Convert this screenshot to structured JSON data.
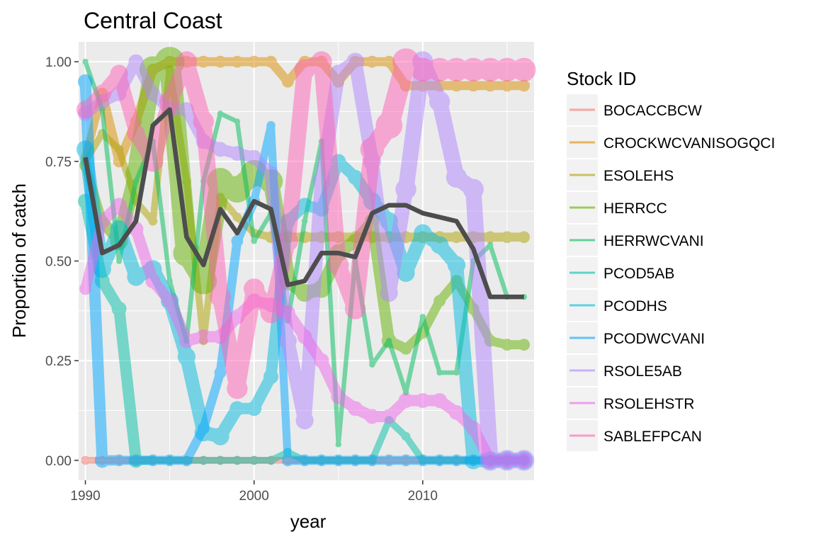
{
  "chart_data": {
    "type": "line",
    "title": "Central Coast",
    "xlabel": "year",
    "ylabel": "Proportion of catch",
    "xlim": [
      1989.6,
      2016.6
    ],
    "ylim": [
      -0.05,
      1.05
    ],
    "x_ticks": [
      1990,
      2000,
      2010
    ],
    "x_tick_labels": [
      "1990",
      "2000",
      "2010"
    ],
    "y_ticks": [
      0,
      0.25,
      0.5,
      0.75,
      1.0
    ],
    "y_tick_labels": [
      "0.00",
      "0.25",
      "0.50",
      "0.75",
      "1.00"
    ],
    "grid": true,
    "legend_title": "Stock ID",
    "legend_position": "right",
    "series": [
      {
        "name": "BOCACCBCW",
        "color": "#F8766D",
        "x": [
          1990,
          1991,
          1992,
          1993,
          1994,
          1995,
          1996,
          1997,
          1998,
          1999,
          2000,
          2001,
          2002,
          2003,
          2004,
          2005,
          2006,
          2007,
          2008,
          2009,
          2010,
          2011,
          2012,
          2013,
          2014,
          2015,
          2016
        ],
        "y": [
          0,
          0,
          0,
          0,
          0,
          0,
          0,
          0,
          0,
          0,
          0,
          0,
          0,
          0,
          0,
          0,
          0,
          0,
          0,
          0,
          0,
          0,
          0,
          0,
          0,
          0,
          0
        ],
        "w": [
          3,
          3,
          3,
          3,
          3,
          3,
          3,
          3,
          3,
          3,
          3,
          3,
          3,
          3,
          3,
          3,
          3,
          3,
          3,
          3,
          3,
          3,
          3,
          3,
          3,
          3,
          3
        ]
      },
      {
        "name": "CROCKWCVANISOGQCI",
        "color": "#DB8E00",
        "x": [
          1990,
          1991,
          1992,
          1993,
          1994,
          1995,
          1996,
          1997,
          1998,
          1999,
          2000,
          2001,
          2002,
          2003,
          2004,
          2005,
          2006,
          2007,
          2008,
          2009,
          2010,
          2011,
          2012,
          2013,
          2014,
          2015,
          2016
        ],
        "y": [
          0.76,
          0.92,
          0.75,
          0.85,
          0.98,
          1.0,
          1.0,
          1.0,
          1.0,
          1.0,
          1.0,
          1.0,
          0.95,
          1.0,
          1.0,
          0.95,
          1.0,
          1.0,
          1.0,
          0.94,
          0.94,
          0.94,
          0.94,
          0.94,
          0.94,
          0.94,
          0.94
        ],
        "w": [
          3,
          4,
          4,
          4,
          4,
          4,
          4,
          4,
          4,
          4,
          4,
          4,
          4,
          4,
          4,
          4,
          4,
          4,
          4,
          4,
          4,
          4,
          4,
          4,
          4,
          4,
          4
        ]
      },
      {
        "name": "ESOLEHS",
        "color": "#AEA200",
        "x": [
          1990,
          1991,
          1992,
          1993,
          1994,
          1995,
          1996,
          1997,
          1998,
          1999,
          2000,
          2001,
          2002,
          2003,
          2004,
          2005,
          2006,
          2007,
          2008,
          2009,
          2010,
          2011,
          2012,
          2013,
          2014,
          2015,
          2016
        ],
        "y": [
          0.75,
          0.82,
          0.78,
          0.65,
          0.6,
          0.98,
          0.7,
          0.3,
          0.66,
          0.61,
          0.57,
          0.56,
          0.56,
          0.56,
          0.56,
          0.56,
          0.56,
          0.56,
          0.56,
          0.56,
          0.56,
          0.56,
          0.56,
          0.56,
          0.56,
          0.56,
          0.56
        ],
        "w": [
          3,
          3,
          3,
          3,
          3,
          3,
          3,
          3,
          3,
          3,
          3,
          4,
          4,
          4,
          4,
          4,
          4,
          4,
          4,
          4,
          4,
          4,
          4,
          4,
          4,
          4,
          4
        ]
      },
      {
        "name": "HERRCC",
        "color": "#64B200",
        "x": [
          1990,
          1991,
          1992,
          1993,
          1994,
          1995,
          1996,
          1997,
          1998,
          1999,
          2000,
          2001,
          2002,
          2003,
          2004,
          2005,
          2006,
          2007,
          2008,
          2009,
          2010,
          2011,
          2012,
          2013,
          2014,
          2015,
          2016
        ],
        "y": [
          0.74,
          0.6,
          0.55,
          0.72,
          0.98,
          1.0,
          0.52,
          0.45,
          0.7,
          0.68,
          0.72,
          0.7,
          0.45,
          0.42,
          0.43,
          0.52,
          0.55,
          0.6,
          0.3,
          0.28,
          0.32,
          0.4,
          0.45,
          0.38,
          0.3,
          0.29,
          0.29
        ],
        "w": [
          4,
          4,
          6,
          7,
          9,
          10,
          9,
          9,
          9,
          9,
          9,
          8,
          6,
          6,
          6,
          6,
          5,
          5,
          5,
          4,
          4,
          4,
          4,
          4,
          4,
          4,
          4
        ]
      },
      {
        "name": "HERRWCVANI",
        "color": "#00BD5C",
        "x": [
          1990,
          1991,
          1992,
          1993,
          1994,
          1995,
          1996,
          1997,
          1998,
          1999,
          2000,
          2001,
          2002,
          2003,
          2004,
          2005,
          2006,
          2007,
          2008,
          2009,
          2010,
          2011,
          2012,
          2013,
          2014,
          2015,
          2016
        ],
        "y": [
          1.0,
          0.88,
          0.5,
          0.7,
          0.8,
          0.45,
          0.3,
          0.7,
          0.87,
          0.85,
          0.55,
          0.62,
          0.35,
          0.6,
          0.8,
          0.04,
          0.5,
          0.24,
          0.3,
          0.17,
          0.36,
          0.22,
          0.22,
          0.5,
          0.54,
          0.41,
          0.41
        ],
        "w": [
          2,
          2,
          2,
          2,
          2,
          2,
          2,
          2,
          2,
          2,
          2,
          2,
          2,
          2,
          2,
          2,
          2,
          2,
          2,
          2,
          2,
          2,
          2,
          2,
          2,
          2,
          2
        ]
      },
      {
        "name": "PCOD5AB",
        "color": "#00C1A7",
        "x": [
          1990,
          1991,
          1992,
          1993,
          1994,
          1995,
          1996,
          1997,
          1998,
          1999,
          2000,
          2001,
          2002,
          2003,
          2004,
          2005,
          2006,
          2007,
          2008,
          2009,
          2010,
          2011,
          2012,
          2013,
          2014,
          2015,
          2016
        ],
        "y": [
          0.65,
          0.45,
          0.38,
          0.0,
          0.0,
          0.0,
          0.0,
          0.0,
          0.0,
          0.0,
          0.0,
          0.0,
          0.02,
          0.0,
          0.0,
          0.0,
          0.0,
          0.0,
          0.1,
          0.06,
          0.0,
          0.0,
          0.0,
          0.0,
          0.0,
          0.0,
          0.0
        ],
        "w": [
          5,
          5,
          5,
          5,
          3,
          3,
          3,
          3,
          3,
          3,
          3,
          3,
          3,
          3,
          3,
          3,
          3,
          3,
          3,
          3,
          3,
          3,
          3,
          3,
          3,
          3,
          3
        ]
      },
      {
        "name": "PCODHS",
        "color": "#00BADE",
        "x": [
          1990,
          1991,
          1992,
          1993,
          1994,
          1995,
          1996,
          1997,
          1998,
          1999,
          2000,
          2001,
          2002,
          2003,
          2004,
          2005,
          2006,
          2007,
          2008,
          2009,
          2010,
          2011,
          2012,
          2013,
          2014,
          2015,
          2016
        ],
        "y": [
          0.78,
          0.48,
          0.58,
          0.46,
          0.48,
          0.4,
          0.26,
          0.07,
          0.06,
          0.13,
          0.13,
          0.21,
          0.6,
          0.64,
          0.63,
          0.75,
          0.71,
          0.65,
          0.6,
          0.47,
          0.57,
          0.54,
          0.49,
          0.0,
          0.0,
          0.0,
          0.0
        ],
        "w": [
          6,
          6,
          6,
          6,
          6,
          6,
          6,
          6,
          6,
          5,
          5,
          5,
          5,
          5,
          5,
          5,
          5,
          6,
          6,
          6,
          6,
          6,
          6,
          6,
          6,
          6,
          6
        ]
      },
      {
        "name": "PCODWCVANI",
        "color": "#00A6FF",
        "x": [
          1990,
          1991,
          1992,
          1993,
          1994,
          1995,
          1996,
          1997,
          1998,
          1999,
          2000,
          2001,
          2002,
          2003,
          2004,
          2005,
          2006,
          2007,
          2008,
          2009,
          2010,
          2011,
          2012,
          2013,
          2014,
          2015,
          2016
        ],
        "y": [
          0.95,
          0.0,
          0.0,
          0.0,
          0.0,
          0.0,
          0.0,
          0.08,
          0.22,
          0.55,
          0.65,
          0.84,
          0.0,
          0.0,
          0.0,
          0.0,
          0.0,
          0.0,
          0.0,
          0.0,
          0.0,
          0.0,
          0.0,
          0.0,
          0.0,
          0.0,
          0.0
        ],
        "w": [
          5,
          5,
          4,
          4,
          4,
          4,
          4,
          4,
          4,
          4,
          4,
          3,
          4,
          4,
          4,
          4,
          4,
          4,
          4,
          4,
          4,
          4,
          4,
          4,
          4,
          4,
          4
        ]
      },
      {
        "name": "RSOLE5AB",
        "color": "#B385FF",
        "x": [
          1990,
          1991,
          1992,
          1993,
          1994,
          1995,
          1996,
          1997,
          1998,
          1999,
          2000,
          2001,
          2002,
          2003,
          2004,
          2005,
          2006,
          2007,
          2008,
          2009,
          2010,
          2011,
          2012,
          2013,
          2014,
          2015,
          2016
        ],
        "y": [
          0.87,
          0.9,
          0.92,
          1.0,
          0.92,
          0.88,
          0.88,
          0.8,
          0.78,
          0.77,
          0.76,
          0.72,
          0.3,
          0.1,
          0.7,
          0.97,
          1.0,
          0.75,
          0.42,
          0.68,
          1.0,
          0.9,
          0.71,
          0.68,
          0.0,
          0.0,
          0.0
        ],
        "w": [
          5,
          5,
          5,
          5,
          5,
          5,
          5,
          5,
          5,
          5,
          5,
          5,
          6,
          6,
          6,
          6,
          6,
          6,
          6,
          7,
          7,
          7,
          7,
          7,
          7,
          7,
          7
        ]
      },
      {
        "name": "RSOLEHSTR",
        "color": "#EF67EB",
        "x": [
          1990,
          1991,
          1992,
          1993,
          1994,
          1995,
          1996,
          1997,
          1998,
          1999,
          2000,
          2001,
          2002,
          2003,
          2004,
          2005,
          2006,
          2007,
          2008,
          2009,
          2010,
          2011,
          2012,
          2013,
          2014,
          2015,
          2016
        ],
        "y": [
          0.43,
          0.6,
          0.64,
          0.58,
          0.45,
          0.4,
          0.3,
          0.31,
          0.31,
          0.36,
          0.4,
          0.39,
          0.37,
          0.31,
          0.25,
          0.16,
          0.13,
          0.11,
          0.11,
          0.15,
          0.15,
          0.15,
          0.12,
          0.08,
          0.0,
          0.0,
          0.0
        ],
        "w": [
          4,
          5,
          5,
          5,
          5,
          5,
          5,
          5,
          5,
          5,
          5,
          5,
          5,
          5,
          5,
          5,
          5,
          5,
          5,
          5,
          5,
          5,
          5,
          5,
          5,
          5,
          5
        ]
      },
      {
        "name": "SABLEFPCAN",
        "color": "#FF63B6",
        "x": [
          1990,
          1991,
          1992,
          1993,
          1994,
          1995,
          1996,
          1997,
          1998,
          1999,
          2000,
          2001,
          2002,
          2003,
          2004,
          2005,
          2006,
          2007,
          2008,
          2009,
          2010,
          2011,
          2012,
          2013,
          2014,
          2015,
          2016
        ],
        "y": [
          0.88,
          0.92,
          0.97,
          0.82,
          0.75,
          0.9,
          1.0,
          0.85,
          0.41,
          0.18,
          0.43,
          0.37,
          0.55,
          0.98,
          1.0,
          0.49,
          0.38,
          0.78,
          0.84,
          1.0,
          0.98,
          0.98,
          0.98,
          0.98,
          0.98,
          0.98,
          0.98
        ],
        "w": [
          6,
          6,
          6,
          6,
          7,
          7,
          7,
          7,
          7,
          7,
          7,
          7,
          7,
          7,
          7,
          7,
          7,
          8,
          9,
          9,
          8,
          8,
          8,
          8,
          8,
          8,
          8
        ]
      }
    ],
    "aggregate_line": {
      "color": "#4D4D4D",
      "x": [
        1990,
        1991,
        1992,
        1993,
        1994,
        1995,
        1996,
        1997,
        1998,
        1999,
        2000,
        2001,
        2002,
        2003,
        2004,
        2005,
        2006,
        2007,
        2008,
        2009,
        2010,
        2011,
        2012,
        2013,
        2014,
        2015,
        2016
      ],
      "y": [
        0.76,
        0.52,
        0.54,
        0.6,
        0.84,
        0.88,
        0.56,
        0.49,
        0.63,
        0.57,
        0.65,
        0.63,
        0.44,
        0.45,
        0.52,
        0.52,
        0.51,
        0.62,
        0.64,
        0.64,
        0.62,
        0.61,
        0.6,
        0.53,
        0.41,
        0.41,
        0.41
      ]
    }
  }
}
